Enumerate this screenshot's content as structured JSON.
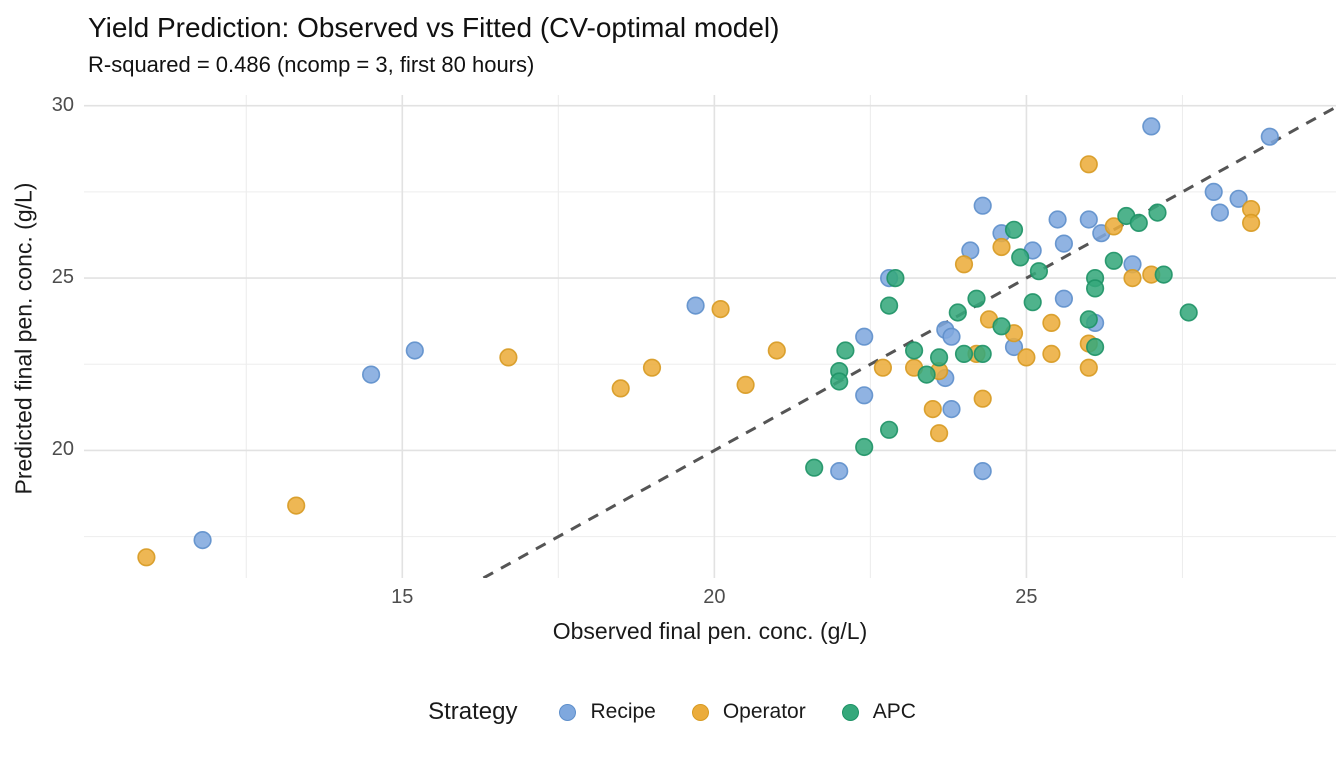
{
  "header": {
    "title": "Yield Prediction: Observed vs Fitted (CV-optimal model)",
    "subtitle": "R-squared = 0.486 (ncomp = 3, first 80 hours)"
  },
  "colors": {
    "grid_major": "#e2e2e2",
    "grid_minor": "#ededed",
    "reference_line": "#555555",
    "tick_text": "#4d4d4d",
    "text": "#1a1a1a"
  },
  "chart_data": {
    "type": "scatter",
    "title": "Yield Prediction: Observed vs Fitted (CV-optimal model)",
    "subtitle": "R-squared = 0.486 (ncomp = 3, first 80 hours)",
    "xlabel": "Observed final pen. conc. (g/L)",
    "ylabel": "Predicted final pen. conc. (g/L)",
    "xlim": [
      9.9,
      29.96
    ],
    "ylim": [
      16.3,
      30.31
    ],
    "x_major_ticks": [
      15,
      20,
      25
    ],
    "x_minor_ticks": [
      12.5,
      17.5,
      22.5,
      27.5
    ],
    "y_major_ticks": [
      20,
      25,
      30
    ],
    "y_minor_ticks": [
      17.5,
      22.5,
      27.5
    ],
    "grid": true,
    "legend_position": "bottom",
    "legend_title": "Strategy",
    "reference_line": {
      "kind": "identity",
      "slope": 1,
      "intercept": 0,
      "dashed": true
    },
    "series": [
      {
        "name": "Recipe",
        "fill": "#7fa8de",
        "stroke": "#5e8fcb",
        "points": [
          [
            11.8,
            17.4
          ],
          [
            14.5,
            22.2
          ],
          [
            15.2,
            22.9
          ],
          [
            19.7,
            24.2
          ],
          [
            22.4,
            23.3
          ],
          [
            22.4,
            21.6
          ],
          [
            22.8,
            25.0
          ],
          [
            23.7,
            23.5
          ],
          [
            23.8,
            23.3
          ],
          [
            24.8,
            23.0
          ],
          [
            23.7,
            22.1
          ],
          [
            24.3,
            27.1
          ],
          [
            24.6,
            26.3
          ],
          [
            24.1,
            25.8
          ],
          [
            25.5,
            26.7
          ],
          [
            25.1,
            25.8
          ],
          [
            25.6,
            26.0
          ],
          [
            25.6,
            24.4
          ],
          [
            27.0,
            29.4
          ],
          [
            28.9,
            29.1
          ],
          [
            28.0,
            27.5
          ],
          [
            28.4,
            27.3
          ],
          [
            28.1,
            26.9
          ],
          [
            26.0,
            26.7
          ],
          [
            26.2,
            26.3
          ],
          [
            26.7,
            25.4
          ],
          [
            26.1,
            23.7
          ],
          [
            23.8,
            21.2
          ],
          [
            22.0,
            19.4
          ],
          [
            24.3,
            19.4
          ]
        ]
      },
      {
        "name": "Operator",
        "fill": "#ebac3b",
        "stroke": "#d79a22",
        "points": [
          [
            10.9,
            16.9
          ],
          [
            13.3,
            18.4
          ],
          [
            16.7,
            22.7
          ],
          [
            18.5,
            21.8
          ],
          [
            19.0,
            22.4
          ],
          [
            20.1,
            24.1
          ],
          [
            20.5,
            21.9
          ],
          [
            21.0,
            22.9
          ],
          [
            22.7,
            22.4
          ],
          [
            23.2,
            22.4
          ],
          [
            23.6,
            22.3
          ],
          [
            24.4,
            23.8
          ],
          [
            24.8,
            23.4
          ],
          [
            24.2,
            22.8
          ],
          [
            25.0,
            22.7
          ],
          [
            25.4,
            23.7
          ],
          [
            25.4,
            22.8
          ],
          [
            24.6,
            25.9
          ],
          [
            24.0,
            25.4
          ],
          [
            26.0,
            28.3
          ],
          [
            28.6,
            27.0
          ],
          [
            28.6,
            26.6
          ],
          [
            26.4,
            26.5
          ],
          [
            26.7,
            25.0
          ],
          [
            27.0,
            25.1
          ],
          [
            26.0,
            23.1
          ],
          [
            26.0,
            22.4
          ],
          [
            23.5,
            21.2
          ],
          [
            23.6,
            20.5
          ],
          [
            24.3,
            21.5
          ]
        ]
      },
      {
        "name": "APC",
        "fill": "#35a87b",
        "stroke": "#1e9266",
        "points": [
          [
            22.1,
            22.9
          ],
          [
            22.0,
            22.3
          ],
          [
            22.0,
            22.0
          ],
          [
            22.9,
            25.0
          ],
          [
            22.8,
            24.2
          ],
          [
            23.2,
            22.9
          ],
          [
            23.4,
            22.2
          ],
          [
            23.9,
            24.0
          ],
          [
            24.2,
            24.4
          ],
          [
            24.6,
            23.6
          ],
          [
            25.1,
            24.3
          ],
          [
            24.8,
            26.4
          ],
          [
            24.9,
            25.6
          ],
          [
            25.2,
            25.2
          ],
          [
            26.1,
            25.0
          ],
          [
            26.1,
            24.7
          ],
          [
            26.0,
            23.8
          ],
          [
            26.1,
            23.0
          ],
          [
            26.6,
            26.8
          ],
          [
            26.8,
            26.6
          ],
          [
            27.1,
            26.9
          ],
          [
            26.4,
            25.5
          ],
          [
            27.2,
            25.1
          ],
          [
            27.6,
            24.0
          ],
          [
            22.8,
            20.6
          ],
          [
            22.4,
            20.1
          ],
          [
            21.6,
            19.5
          ],
          [
            23.6,
            22.7
          ],
          [
            24.0,
            22.8
          ],
          [
            24.3,
            22.8
          ]
        ]
      }
    ]
  }
}
